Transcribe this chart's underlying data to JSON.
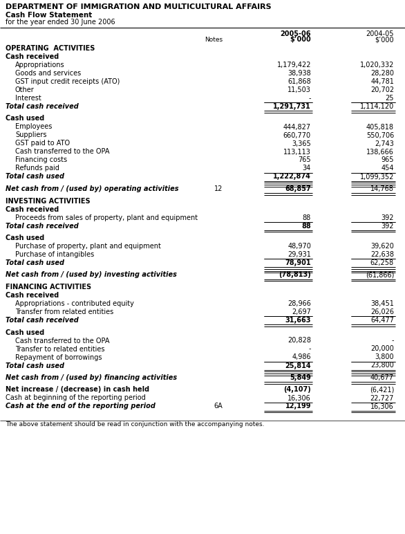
{
  "title1": "DEPARTMENT OF IMMIGRATION AND MULTICULTURAL AFFAIRS",
  "title2": "Cash Flow Statement",
  "title3": "for the year ended 30 June 2006",
  "col1_header": "2005-06",
  "col2_header": "2004-05",
  "col1_subheader": "$’000",
  "col2_subheader": "$’000",
  "notes_label": "Notes",
  "rows": [
    {
      "label": "OPERATING  ACTIVITIES",
      "indent": 0,
      "bold": true,
      "type": "section_header",
      "note": "",
      "v1": "",
      "v2": ""
    },
    {
      "label": "Cash received",
      "indent": 0,
      "bold": false,
      "type": "subsection",
      "note": "",
      "v1": "",
      "v2": ""
    },
    {
      "label": "Appropriations",
      "indent": 1,
      "bold": false,
      "type": "data",
      "note": "",
      "v1": "1,179,422",
      "v2": "1,020,332"
    },
    {
      "label": "Goods and services",
      "indent": 1,
      "bold": false,
      "type": "data",
      "note": "",
      "v1": "38,938",
      "v2": "28,280"
    },
    {
      "label": "GST input credit receipts (ATO)",
      "indent": 1,
      "bold": false,
      "type": "data",
      "note": "",
      "v1": "61,868",
      "v2": "44,781"
    },
    {
      "label": "Other",
      "indent": 1,
      "bold": false,
      "type": "data",
      "note": "",
      "v1": "11,503",
      "v2": "20,702"
    },
    {
      "label": "Interest",
      "indent": 1,
      "bold": false,
      "type": "data_line",
      "note": "",
      "v1": "-",
      "v2": "25"
    },
    {
      "label": "Total cash received",
      "indent": 0,
      "bold": true,
      "type": "total",
      "note": "",
      "v1": "1,291,731",
      "v2": "1,114,120"
    },
    {
      "label": "",
      "indent": 0,
      "bold": false,
      "type": "spacer",
      "note": "",
      "v1": "",
      "v2": ""
    },
    {
      "label": "Cash used",
      "indent": 0,
      "bold": false,
      "type": "subsection",
      "note": "",
      "v1": "",
      "v2": ""
    },
    {
      "label": "Employees",
      "indent": 1,
      "bold": false,
      "type": "data",
      "note": "",
      "v1": "444,827",
      "v2": "405,818"
    },
    {
      "label": "Suppliers",
      "indent": 1,
      "bold": false,
      "type": "data",
      "note": "",
      "v1": "660,770",
      "v2": "550,706"
    },
    {
      "label": "GST paid to ATO",
      "indent": 1,
      "bold": false,
      "type": "data",
      "note": "",
      "v1": "3,365",
      "v2": "2,743"
    },
    {
      "label": "Cash transferred to the OPA",
      "indent": 1,
      "bold": false,
      "type": "data",
      "note": "",
      "v1": "113,113",
      "v2": "138,666"
    },
    {
      "label": "Financing costs",
      "indent": 1,
      "bold": false,
      "type": "data",
      "note": "",
      "v1": "765",
      "v2": "965"
    },
    {
      "label": "Refunds paid",
      "indent": 1,
      "bold": false,
      "type": "data_line",
      "note": "",
      "v1": "34",
      "v2": "454"
    },
    {
      "label": "Total cash used",
      "indent": 0,
      "bold": true,
      "type": "total",
      "note": "",
      "v1": "1,222,874",
      "v2": "1,099,352"
    },
    {
      "label": "",
      "indent": 0,
      "bold": false,
      "type": "spacer",
      "note": "",
      "v1": "",
      "v2": ""
    },
    {
      "label": "Net cash from / (used by) operating activities",
      "indent": 0,
      "bold": true,
      "type": "net_total",
      "note": "12",
      "v1": "68,857",
      "v2": "14,768"
    },
    {
      "label": "",
      "indent": 0,
      "bold": false,
      "type": "spacer",
      "note": "",
      "v1": "",
      "v2": ""
    },
    {
      "label": "INVESTING ACTIVITIES",
      "indent": 0,
      "bold": true,
      "type": "section_header",
      "note": "",
      "v1": "",
      "v2": ""
    },
    {
      "label": "Cash received",
      "indent": 0,
      "bold": false,
      "type": "subsection",
      "note": "",
      "v1": "",
      "v2": ""
    },
    {
      "label": "Proceeds from sales of property, plant and equipment",
      "indent": 1,
      "bold": false,
      "type": "data_line",
      "note": "",
      "v1": "88",
      "v2": "392"
    },
    {
      "label": "Total cash received",
      "indent": 0,
      "bold": true,
      "type": "total",
      "note": "",
      "v1": "88",
      "v2": "392"
    },
    {
      "label": "",
      "indent": 0,
      "bold": false,
      "type": "spacer",
      "note": "",
      "v1": "",
      "v2": ""
    },
    {
      "label": "Cash used",
      "indent": 0,
      "bold": false,
      "type": "subsection",
      "note": "",
      "v1": "",
      "v2": ""
    },
    {
      "label": "Purchase of property, plant and equipment",
      "indent": 1,
      "bold": false,
      "type": "data",
      "note": "",
      "v1": "48,970",
      "v2": "39,620"
    },
    {
      "label": "Purchase of intangibles",
      "indent": 1,
      "bold": false,
      "type": "data_line",
      "note": "",
      "v1": "29,931",
      "v2": "22,638"
    },
    {
      "label": "Total cash used",
      "indent": 0,
      "bold": true,
      "type": "total",
      "note": "",
      "v1": "78,901",
      "v2": "62,258"
    },
    {
      "label": "",
      "indent": 0,
      "bold": false,
      "type": "spacer",
      "note": "",
      "v1": "",
      "v2": ""
    },
    {
      "label": "Net cash from / (used by) investing activities",
      "indent": 0,
      "bold": true,
      "type": "net_total",
      "note": "",
      "v1": "(78,813)",
      "v2": "(61,866)"
    },
    {
      "label": "",
      "indent": 0,
      "bold": false,
      "type": "spacer",
      "note": "",
      "v1": "",
      "v2": ""
    },
    {
      "label": "FINANCING ACTIVITIES",
      "indent": 0,
      "bold": true,
      "type": "section_header",
      "note": "",
      "v1": "",
      "v2": ""
    },
    {
      "label": "Cash received",
      "indent": 0,
      "bold": false,
      "type": "subsection",
      "note": "",
      "v1": "",
      "v2": ""
    },
    {
      "label": "Appropriations - contributed equity",
      "indent": 1,
      "bold": false,
      "type": "data",
      "note": "",
      "v1": "28,966",
      "v2": "38,451"
    },
    {
      "label": "Transfer from related entities",
      "indent": 1,
      "bold": false,
      "type": "data_line",
      "note": "",
      "v1": "2,697",
      "v2": "26,026"
    },
    {
      "label": "Total cash received",
      "indent": 0,
      "bold": true,
      "type": "total",
      "note": "",
      "v1": "31,663",
      "v2": "64,477"
    },
    {
      "label": "",
      "indent": 0,
      "bold": false,
      "type": "spacer",
      "note": "",
      "v1": "",
      "v2": ""
    },
    {
      "label": "Cash used",
      "indent": 0,
      "bold": false,
      "type": "subsection",
      "note": "",
      "v1": "",
      "v2": ""
    },
    {
      "label": "Cash transferred to the OPA",
      "indent": 1,
      "bold": false,
      "type": "data",
      "note": "",
      "v1": "20,828",
      "v2": "-"
    },
    {
      "label": "Transfer to related entities",
      "indent": 1,
      "bold": false,
      "type": "data",
      "note": "",
      "v1": "-",
      "v2": "20,000"
    },
    {
      "label": "Repayment of borrowings",
      "indent": 1,
      "bold": false,
      "type": "data_line",
      "note": "",
      "v1": "4,986",
      "v2": "3,800"
    },
    {
      "label": "Total cash used",
      "indent": 0,
      "bold": true,
      "type": "total",
      "note": "",
      "v1": "25,814",
      "v2": "23,800"
    },
    {
      "label": "",
      "indent": 0,
      "bold": false,
      "type": "spacer",
      "note": "",
      "v1": "",
      "v2": ""
    },
    {
      "label": "Net cash from / (used by) financing activities",
      "indent": 0,
      "bold": true,
      "type": "net_total",
      "note": "",
      "v1": "5,849",
      "v2": "40,677"
    },
    {
      "label": "",
      "indent": 0,
      "bold": false,
      "type": "spacer",
      "note": "",
      "v1": "",
      "v2": ""
    },
    {
      "label": "Net increase / (decrease) in cash held",
      "indent": 0,
      "bold": true,
      "type": "bold_data",
      "note": "",
      "v1": "(4,107)",
      "v2": "(6,421)"
    },
    {
      "label": "Cash at beginning of the reporting period",
      "indent": 0,
      "bold": false,
      "type": "data",
      "note": "",
      "v1": "16,306",
      "v2": "22,727"
    },
    {
      "label": "Cash at the end of the reporting period",
      "indent": 0,
      "bold": true,
      "type": "final_total",
      "note": "6A",
      "v1": "12,199",
      "v2": "16,306"
    },
    {
      "label": "",
      "indent": 0,
      "bold": false,
      "type": "spacer",
      "note": "",
      "v1": "",
      "v2": ""
    }
  ],
  "footer": "The above statement should be read in conjunction with the accompanying notes.",
  "bg_color": "#ffffff",
  "text_color": "#000000",
  "line_color": "#000000",
  "figw": 5.86,
  "figh": 7.72,
  "dpi": 100
}
